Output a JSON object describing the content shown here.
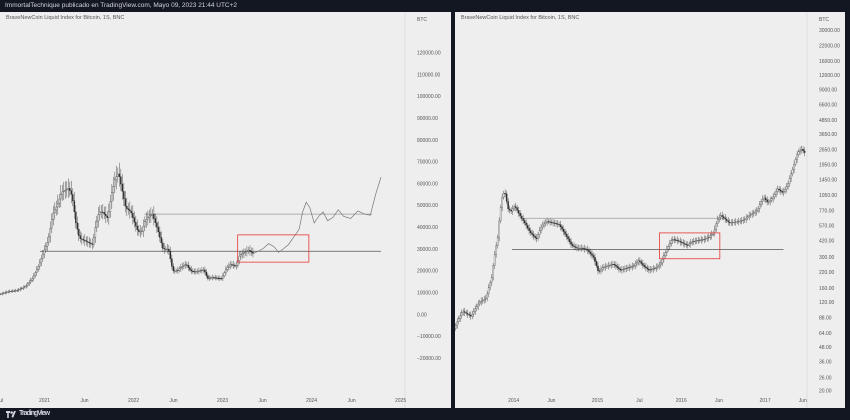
{
  "header": {
    "text": "ImmortalTechnique publicado en TradingView.com, Mayo 09, 2023 21:44 UTC+2"
  },
  "footer": {
    "brand": "TradingView",
    "logo_icon": "tradingview-logo-icon"
  },
  "colors": {
    "background": "#131722",
    "panel": "#eeeeee",
    "candle": "#2a2a2a",
    "support_line": "#555555",
    "resistance_line": "#9a9a9a",
    "box": "#e53935",
    "projection": "#777777"
  },
  "chart_data": [
    {
      "type": "candlestick",
      "title": "BraveNewCoin Liquid Index for Bitcoin, 1S, BNC",
      "currency": "BTC",
      "y_scale": "linear",
      "ylim": [
        -25000,
        127000
      ],
      "y_ticks": [
        "120000.00",
        "110000.00",
        "100000.00",
        "90000.00",
        "80000.00",
        "70000.00",
        "60000.00",
        "50000.00",
        "40000.00",
        "30000.00",
        "20000.00",
        "10000.00",
        "0.00",
        "−10000.00",
        "−20000.00"
      ],
      "y_tick_values": [
        120000,
        110000,
        100000,
        90000,
        80000,
        70000,
        60000,
        50000,
        40000,
        30000,
        20000,
        10000,
        0,
        -10000,
        -20000
      ],
      "x_ticks": [
        {
          "label": "Jul",
          "t": 2020.5
        },
        {
          "label": "2021",
          "t": 2021.0
        },
        {
          "label": "Jun",
          "t": 2021.45
        },
        {
          "label": "2022",
          "t": 2022.0
        },
        {
          "label": "Jun",
          "t": 2022.45
        },
        {
          "label": "2023",
          "t": 2023.0
        },
        {
          "label": "Jun",
          "t": 2023.45
        },
        {
          "label": "2024",
          "t": 2024.0
        },
        {
          "label": "Jun",
          "t": 2024.45
        },
        {
          "label": "2025",
          "t": 2025.0
        }
      ],
      "xlim": [
        2020.5,
        2025.05
      ],
      "price_series": [
        [
          2020.5,
          9200
        ],
        [
          2020.6,
          10500
        ],
        [
          2020.7,
          11000
        ],
        [
          2020.8,
          13000
        ],
        [
          2020.88,
          17000
        ],
        [
          2020.95,
          23000
        ],
        [
          2021.0,
          29000
        ],
        [
          2021.05,
          34000
        ],
        [
          2021.1,
          46000
        ],
        [
          2021.15,
          50000
        ],
        [
          2021.2,
          56000
        ],
        [
          2021.28,
          58000
        ],
        [
          2021.32,
          54000
        ],
        [
          2021.36,
          42000
        ],
        [
          2021.4,
          35000
        ],
        [
          2021.45,
          34000
        ],
        [
          2021.5,
          33000
        ],
        [
          2021.55,
          32000
        ],
        [
          2021.58,
          40000
        ],
        [
          2021.62,
          47000
        ],
        [
          2021.66,
          47000
        ],
        [
          2021.72,
          44000
        ],
        [
          2021.76,
          55000
        ],
        [
          2021.8,
          62000
        ],
        [
          2021.84,
          65000
        ],
        [
          2021.88,
          57000
        ],
        [
          2021.92,
          49000
        ],
        [
          2021.98,
          47000
        ],
        [
          2022.02,
          42000
        ],
        [
          2022.06,
          38000
        ],
        [
          2022.1,
          38000
        ],
        [
          2022.14,
          43000
        ],
        [
          2022.18,
          45000
        ],
        [
          2022.22,
          46000
        ],
        [
          2022.28,
          39000
        ],
        [
          2022.34,
          30000
        ],
        [
          2022.4,
          30000
        ],
        [
          2022.45,
          20000
        ],
        [
          2022.5,
          20000
        ],
        [
          2022.55,
          22000
        ],
        [
          2022.6,
          23000
        ],
        [
          2022.65,
          20000
        ],
        [
          2022.7,
          19500
        ],
        [
          2022.75,
          20000
        ],
        [
          2022.8,
          20500
        ],
        [
          2022.84,
          16500
        ],
        [
          2022.9,
          17000
        ],
        [
          2022.96,
          16600
        ],
        [
          2023.0,
          16500
        ],
        [
          2023.05,
          21000
        ],
        [
          2023.1,
          23000
        ],
        [
          2023.16,
          22000
        ],
        [
          2023.2,
          27000
        ],
        [
          2023.26,
          28500
        ],
        [
          2023.3,
          29500
        ],
        [
          2023.35,
          28000
        ]
      ],
      "projection": [
        [
          2023.35,
          28000
        ],
        [
          2023.45,
          30000
        ],
        [
          2023.52,
          32500
        ],
        [
          2023.58,
          31000
        ],
        [
          2023.63,
          28500
        ],
        [
          2023.68,
          30000
        ],
        [
          2023.74,
          32000
        ],
        [
          2023.8,
          35500
        ],
        [
          2023.86,
          39000
        ],
        [
          2023.9,
          47000
        ],
        [
          2023.94,
          51500
        ],
        [
          2023.98,
          49000
        ],
        [
          2024.03,
          42000
        ],
        [
          2024.08,
          45000
        ],
        [
          2024.13,
          47000
        ],
        [
          2024.18,
          43000
        ],
        [
          2024.24,
          44500
        ],
        [
          2024.3,
          48000
        ],
        [
          2024.36,
          45000
        ],
        [
          2024.44,
          44000
        ],
        [
          2024.52,
          47500
        ],
        [
          2024.6,
          46000
        ],
        [
          2024.66,
          45500
        ],
        [
          2024.72,
          55000
        ],
        [
          2024.78,
          63000
        ]
      ],
      "support_line": {
        "value": 29000,
        "from": 2020.95,
        "to": 2024.78
      },
      "resistance_line": {
        "value": 46000,
        "from": 2022.12,
        "to": 2024.68
      },
      "highlight_box": {
        "x0": 2023.17,
        "x1": 2023.97,
        "y0": 24000,
        "y1": 36500
      }
    },
    {
      "type": "candlestick",
      "title": "BraveNewCoin Liquid Index for Bitcoin, 1S, BNC",
      "currency": "BTC",
      "y_scale": "log",
      "ylim": [
        20,
        33000
      ],
      "y_ticks": [
        "30000.00",
        "22000.00",
        "16000.00",
        "12000.00",
        "9000.00",
        "6600.00",
        "4850.00",
        "3650.00",
        "2650.00",
        "1950.00",
        "1450.00",
        "1050.00",
        "770.00",
        "570.00",
        "420.00",
        "300.00",
        "220.00",
        "160.00",
        "120.00",
        "88.00",
        "64.00",
        "48.00",
        "36.00",
        "26.00",
        "20.00"
      ],
      "y_tick_values": [
        30000,
        22000,
        16000,
        12000,
        9000,
        6600,
        4850,
        3650,
        2650,
        1950,
        1450,
        1050,
        770,
        570,
        420,
        300,
        220,
        160,
        120,
        88,
        64,
        48,
        36,
        26,
        20
      ],
      "x_ticks": [
        {
          "label": "2014",
          "t": 2014.0
        },
        {
          "label": "Jun",
          "t": 2014.45
        },
        {
          "label": "2015",
          "t": 2015.0
        },
        {
          "label": "Jul",
          "t": 2015.5
        },
        {
          "label": "2016",
          "t": 2016.0
        },
        {
          "label": "Jun",
          "t": 2016.45
        },
        {
          "label": "2017",
          "t": 2017.0
        },
        {
          "label": "Jun",
          "t": 2017.45
        }
      ],
      "xlim": [
        2013.3,
        2017.5
      ],
      "price_series": [
        [
          2013.3,
          70
        ],
        [
          2013.4,
          100
        ],
        [
          2013.5,
          90
        ],
        [
          2013.6,
          120
        ],
        [
          2013.68,
          130
        ],
        [
          2013.75,
          200
        ],
        [
          2013.82,
          450
        ],
        [
          2013.87,
          1000
        ],
        [
          2013.9,
          1150
        ],
        [
          2013.94,
          800
        ],
        [
          2013.98,
          760
        ],
        [
          2014.02,
          850
        ],
        [
          2014.08,
          700
        ],
        [
          2014.14,
          600
        ],
        [
          2014.2,
          500
        ],
        [
          2014.28,
          430
        ],
        [
          2014.34,
          560
        ],
        [
          2014.4,
          620
        ],
        [
          2014.48,
          600
        ],
        [
          2014.55,
          580
        ],
        [
          2014.62,
          480
        ],
        [
          2014.7,
          380
        ],
        [
          2014.76,
          360
        ],
        [
          2014.82,
          360
        ],
        [
          2014.88,
          350
        ],
        [
          2014.96,
          300
        ],
        [
          2015.02,
          220
        ],
        [
          2015.06,
          240
        ],
        [
          2015.12,
          250
        ],
        [
          2015.2,
          260
        ],
        [
          2015.28,
          230
        ],
        [
          2015.36,
          240
        ],
        [
          2015.44,
          250
        ],
        [
          2015.5,
          280
        ],
        [
          2015.56,
          250
        ],
        [
          2015.62,
          230
        ],
        [
          2015.7,
          240
        ],
        [
          2015.76,
          260
        ],
        [
          2015.82,
          330
        ],
        [
          2015.86,
          380
        ],
        [
          2015.9,
          430
        ],
        [
          2015.96,
          420
        ],
        [
          2016.02,
          400
        ],
        [
          2016.08,
          380
        ],
        [
          2016.14,
          410
        ],
        [
          2016.2,
          420
        ],
        [
          2016.28,
          430
        ],
        [
          2016.34,
          450
        ],
        [
          2016.4,
          500
        ],
        [
          2016.44,
          640
        ],
        [
          2016.48,
          700
        ],
        [
          2016.52,
          660
        ],
        [
          2016.58,
          600
        ],
        [
          2016.64,
          610
        ],
        [
          2016.7,
          620
        ],
        [
          2016.76,
          640
        ],
        [
          2016.82,
          700
        ],
        [
          2016.88,
          740
        ],
        [
          2016.92,
          780
        ],
        [
          2016.97,
          960
        ],
        [
          2017.0,
          1000
        ],
        [
          2017.04,
          900
        ],
        [
          2017.1,
          1000
        ],
        [
          2017.16,
          1200
        ],
        [
          2017.22,
          1100
        ],
        [
          2017.28,
          1300
        ],
        [
          2017.34,
          1800
        ],
        [
          2017.4,
          2500
        ],
        [
          2017.44,
          2700
        ],
        [
          2017.48,
          2500
        ]
      ],
      "support_line": {
        "value": 350,
        "from": 2013.98,
        "to": 2017.22
      },
      "resistance_line": {
        "value": 660,
        "from": 2014.12,
        "to": 2016.52
      },
      "highlight_box": {
        "x0": 2015.74,
        "x1": 2016.46,
        "y0": 290,
        "y1": 490
      }
    }
  ]
}
